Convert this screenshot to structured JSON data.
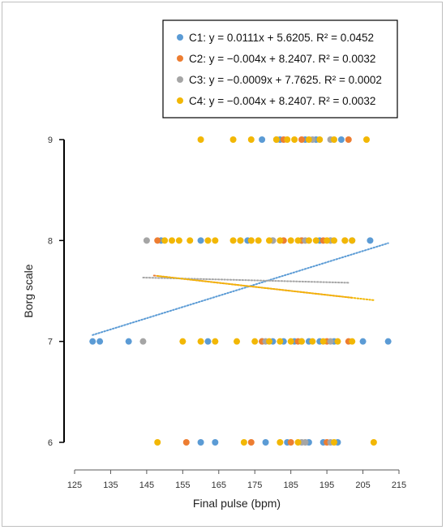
{
  "chart_data": {
    "type": "scatter",
    "title": "",
    "xlabel": "Final pulse (bpm)",
    "ylabel": "Borg scale",
    "xlim": [
      125,
      215
    ],
    "ylim": [
      6,
      9
    ],
    "xticks": [
      "125",
      "135",
      "145",
      "155",
      "165",
      "175",
      "185",
      "195",
      "205",
      "215"
    ],
    "yticks": [
      "6",
      "7",
      "8",
      "9"
    ],
    "grid": false,
    "legend_position": "top-right",
    "series": [
      {
        "name": "C1",
        "legend": "C1: y = 0.0111x + 5.6205. R² = 0.0452",
        "color": "#5B9BD5",
        "trend": {
          "slope": 0.0111,
          "intercept": 5.6205,
          "x_range": [
            130,
            212
          ]
        },
        "points": [
          [
            130,
            7
          ],
          [
            132,
            7
          ],
          [
            140,
            7
          ],
          [
            162,
            7
          ],
          [
            177,
            7
          ],
          [
            180,
            7
          ],
          [
            183,
            7
          ],
          [
            186,
            7
          ],
          [
            190,
            7
          ],
          [
            193,
            7
          ],
          [
            197,
            7
          ],
          [
            205,
            7
          ],
          [
            212,
            7
          ],
          [
            149,
            8
          ],
          [
            160,
            8
          ],
          [
            173,
            8
          ],
          [
            180,
            8
          ],
          [
            188,
            8
          ],
          [
            193,
            8
          ],
          [
            196,
            8
          ],
          [
            202,
            8
          ],
          [
            207,
            8
          ],
          [
            177,
            9
          ],
          [
            182,
            9
          ],
          [
            189,
            9
          ],
          [
            192,
            9
          ],
          [
            199,
            9
          ],
          [
            160,
            6
          ],
          [
            164,
            6
          ],
          [
            178,
            6
          ],
          [
            184,
            6
          ],
          [
            190,
            6
          ],
          [
            194,
            6
          ],
          [
            198,
            6
          ]
        ]
      },
      {
        "name": "C2",
        "legend": "C2: y = −0.004x + 8.2407. R² = 0.0032",
        "color": "#ED7D31",
        "trend": {
          "slope": -0.004,
          "intercept": 8.2407,
          "x_range": [
            147,
            202
          ]
        },
        "points": [
          [
            156,
            6
          ],
          [
            174,
            6
          ],
          [
            185,
            6
          ],
          [
            195,
            6
          ],
          [
            177,
            7
          ],
          [
            187,
            7
          ],
          [
            195,
            7
          ],
          [
            201,
            7
          ],
          [
            148,
            8
          ],
          [
            174,
            8
          ],
          [
            183,
            8
          ],
          [
            188,
            8
          ],
          [
            194,
            8
          ],
          [
            200,
            8
          ],
          [
            183,
            9
          ],
          [
            188,
            9
          ],
          [
            201,
            9
          ]
        ]
      },
      {
        "name": "C3",
        "legend": "C3: y = −0.0009x + 7.7625. R² = 0.0002",
        "color": "#A5A5A5",
        "trend": {
          "slope": -0.0009,
          "intercept": 7.7625,
          "x_range": [
            144,
            201
          ]
        },
        "points": [
          [
            188,
            6
          ],
          [
            189,
            6
          ],
          [
            196,
            6
          ],
          [
            144,
            7
          ],
          [
            178,
            7
          ],
          [
            188,
            7
          ],
          [
            196,
            7
          ],
          [
            145,
            8
          ],
          [
            171,
            8
          ],
          [
            180,
            8
          ],
          [
            189,
            8
          ],
          [
            196,
            8
          ],
          [
            181,
            9
          ],
          [
            191,
            9
          ],
          [
            196,
            9
          ]
        ]
      },
      {
        "name": "C4",
        "legend": "C4: y = −0.004x + 8.2407. R² = 0.0032",
        "color": "#F2B705",
        "trend": {
          "slope": -0.004,
          "intercept": 8.2407,
          "x_range": [
            148,
            208
          ]
        },
        "points": [
          [
            148,
            6
          ],
          [
            172,
            6
          ],
          [
            182,
            6
          ],
          [
            187,
            6
          ],
          [
            197,
            6
          ],
          [
            208,
            6
          ],
          [
            155,
            7
          ],
          [
            160,
            7
          ],
          [
            164,
            7
          ],
          [
            170,
            7
          ],
          [
            175,
            7
          ],
          [
            179,
            7
          ],
          [
            182,
            7
          ],
          [
            185,
            7
          ],
          [
            188,
            7
          ],
          [
            191,
            7
          ],
          [
            194,
            7
          ],
          [
            198,
            7
          ],
          [
            202,
            7
          ],
          [
            150,
            8
          ],
          [
            152,
            8
          ],
          [
            154,
            8
          ],
          [
            157,
            8
          ],
          [
            162,
            8
          ],
          [
            164,
            8
          ],
          [
            169,
            8
          ],
          [
            171,
            8
          ],
          [
            174,
            8
          ],
          [
            176,
            8
          ],
          [
            179,
            8
          ],
          [
            182,
            8
          ],
          [
            185,
            8
          ],
          [
            187,
            8
          ],
          [
            190,
            8
          ],
          [
            192,
            8
          ],
          [
            195,
            8
          ],
          [
            197,
            8
          ],
          [
            200,
            8
          ],
          [
            202,
            8
          ],
          [
            160,
            9
          ],
          [
            169,
            9
          ],
          [
            174,
            9
          ],
          [
            181,
            9
          ],
          [
            184,
            9
          ],
          [
            186,
            9
          ],
          [
            190,
            9
          ],
          [
            193,
            9
          ],
          [
            197,
            9
          ],
          [
            206,
            9
          ]
        ]
      }
    ]
  }
}
